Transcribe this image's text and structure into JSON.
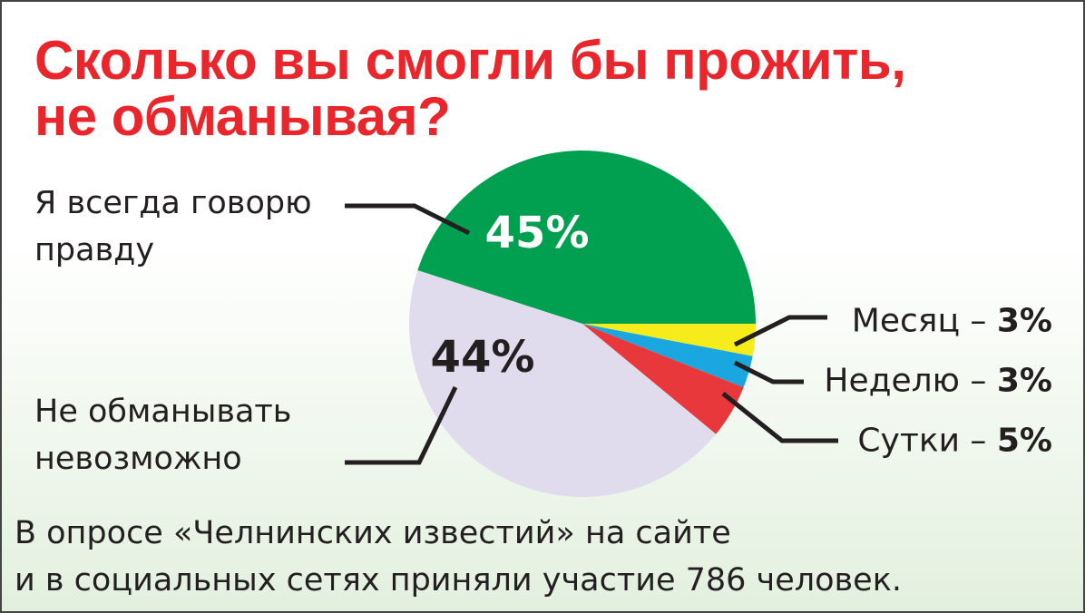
{
  "chart_data": {
    "type": "pie",
    "title": [
      "Сколько вы смогли бы прожить,",
      "не обманывая?"
    ],
    "categories": [
      "Месяц",
      "Неделю",
      "Сутки",
      "Не обманывать невозможно",
      "Я всегда говорю правду"
    ],
    "values": [
      3,
      3,
      5,
      44,
      45
    ],
    "value_labels": [
      "3%",
      "3%",
      "5%",
      "44%",
      "45%"
    ],
    "colors": [
      "#f6ec1b",
      "#1aa7e0",
      "#e8383c",
      "#e0dcee",
      "#00a050"
    ],
    "label_separator": "–",
    "note": [
      "В опросе «Челнинских известий» на сайте",
      "и в социальных сетях приняли участие 786 человек."
    ]
  }
}
